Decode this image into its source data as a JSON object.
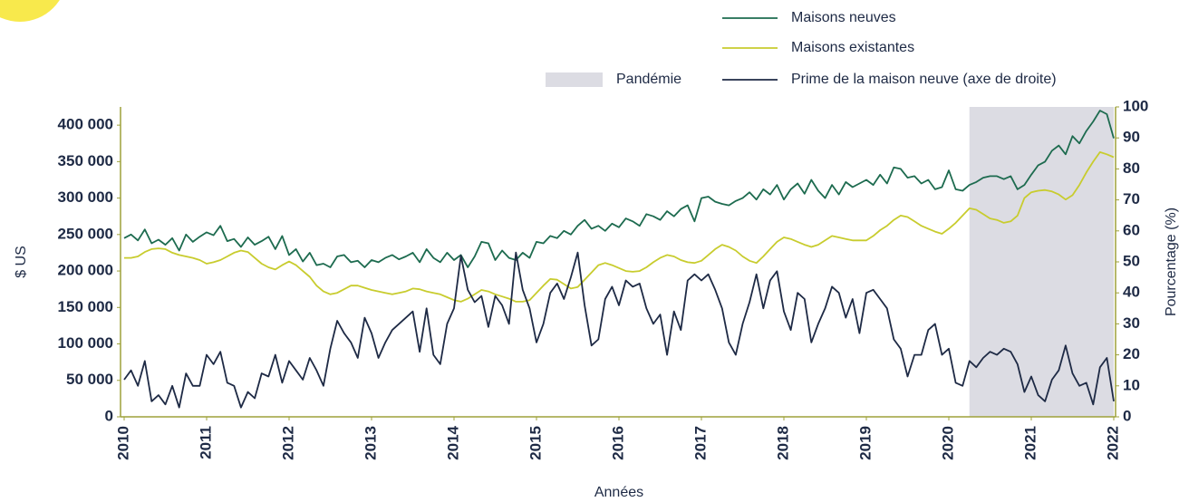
{
  "chart_data": {
    "type": "line",
    "x_label": "Années",
    "y_label": "$ US",
    "y2_label": "Pourcentage (%)",
    "x": [
      2010,
      2010.083,
      2010.167,
      2010.25,
      2010.333,
      2010.417,
      2010.5,
      2010.583,
      2010.667,
      2010.75,
      2010.833,
      2010.917,
      2011,
      2011.083,
      2011.167,
      2011.25,
      2011.333,
      2011.417,
      2011.5,
      2011.583,
      2011.667,
      2011.75,
      2011.833,
      2011.917,
      2012,
      2012.083,
      2012.167,
      2012.25,
      2012.333,
      2012.417,
      2012.5,
      2012.583,
      2012.667,
      2012.75,
      2012.833,
      2012.917,
      2013,
      2013.083,
      2013.167,
      2013.25,
      2013.333,
      2013.417,
      2013.5,
      2013.583,
      2013.667,
      2013.75,
      2013.833,
      2013.917,
      2014,
      2014.083,
      2014.167,
      2014.25,
      2014.333,
      2014.417,
      2014.5,
      2014.583,
      2014.667,
      2014.75,
      2014.833,
      2014.917,
      2015,
      2015.083,
      2015.167,
      2015.25,
      2015.333,
      2015.417,
      2015.5,
      2015.583,
      2015.667,
      2015.75,
      2015.833,
      2015.917,
      2016,
      2016.083,
      2016.167,
      2016.25,
      2016.333,
      2016.417,
      2016.5,
      2016.583,
      2016.667,
      2016.75,
      2016.833,
      2016.917,
      2017,
      2017.083,
      2017.167,
      2017.25,
      2017.333,
      2017.417,
      2017.5,
      2017.583,
      2017.667,
      2017.75,
      2017.833,
      2017.917,
      2018,
      2018.083,
      2018.167,
      2018.25,
      2018.333,
      2018.417,
      2018.5,
      2018.583,
      2018.667,
      2018.75,
      2018.833,
      2018.917,
      2019,
      2019.083,
      2019.167,
      2019.25,
      2019.333,
      2019.417,
      2019.5,
      2019.583,
      2019.667,
      2019.75,
      2019.833,
      2019.917,
      2020,
      2020.083,
      2020.167,
      2020.25,
      2020.333,
      2020.417,
      2020.5,
      2020.583,
      2020.667,
      2020.75,
      2020.833,
      2020.917,
      2021,
      2021.083,
      2021.167,
      2021.25,
      2021.333,
      2021.417,
      2021.5,
      2021.583,
      2021.667,
      2021.75,
      2021.833,
      2021.917,
      2022
    ],
    "xlim": [
      2010,
      2022
    ],
    "xticks": [
      2010,
      2011,
      2012,
      2013,
      2014,
      2015,
      2016,
      2017,
      2018,
      2019,
      2020,
      2021,
      2022
    ],
    "ylim": [
      0,
      425000
    ],
    "yticks": [
      0,
      {
        "value": 50000,
        "label": "50 000"
      },
      {
        "value": 100000,
        "label": "100 000"
      },
      {
        "value": 150000,
        "label": "150 000"
      },
      {
        "value": 200000,
        "label": "200 000"
      },
      {
        "value": 250000,
        "label": "250 000"
      },
      {
        "value": 300000,
        "label": "300 000"
      },
      {
        "value": 350000,
        "label": "350 000"
      },
      {
        "value": 400000,
        "label": "400 000"
      }
    ],
    "y2lim": [
      0,
      100
    ],
    "y2ticks": [
      0,
      10,
      20,
      30,
      40,
      50,
      60,
      70,
      80,
      90,
      100
    ],
    "axis_color": "#9ea13a",
    "pandemic": {
      "label": "Pandémie",
      "start": 2020.25,
      "end": 2022,
      "color": "#dcdce3"
    },
    "series": [
      {
        "name": "Maisons neuves",
        "color": "#1d6b4f",
        "values": [
          245000,
          250000,
          242000,
          257000,
          238000,
          243000,
          236000,
          245000,
          228000,
          250000,
          240000,
          247000,
          253000,
          249000,
          262000,
          241000,
          244000,
          233000,
          246000,
          236000,
          241000,
          247000,
          230000,
          248000,
          222000,
          230000,
          213000,
          225000,
          208000,
          210000,
          205000,
          220000,
          222000,
          212000,
          214000,
          205000,
          215000,
          212000,
          218000,
          222000,
          216000,
          220000,
          225000,
          212000,
          230000,
          218000,
          212000,
          225000,
          215000,
          222000,
          205000,
          220000,
          240000,
          238000,
          215000,
          228000,
          218000,
          215000,
          225000,
          218000,
          240000,
          238000,
          248000,
          245000,
          255000,
          250000,
          262000,
          270000,
          258000,
          262000,
          255000,
          265000,
          260000,
          272000,
          268000,
          262000,
          278000,
          275000,
          270000,
          282000,
          275000,
          285000,
          290000,
          268000,
          300000,
          302000,
          295000,
          292000,
          290000,
          296000,
          300000,
          308000,
          298000,
          312000,
          305000,
          318000,
          298000,
          312000,
          320000,
          306000,
          325000,
          310000,
          300000,
          318000,
          305000,
          322000,
          315000,
          320000,
          325000,
          318000,
          332000,
          320000,
          342000,
          340000,
          328000,
          330000,
          320000,
          325000,
          312000,
          315000,
          338000,
          312000,
          310000,
          318000,
          322000,
          328000,
          330000,
          330000,
          326000,
          330000,
          312000,
          318000,
          332000,
          345000,
          350000,
          365000,
          372000,
          360000,
          385000,
          375000,
          392000,
          405000,
          420000,
          415000,
          382000
        ]
      },
      {
        "name": "Maisons existantes",
        "color": "#c8cc2e",
        "values": [
          218000,
          218000,
          220000,
          226000,
          230000,
          231000,
          230000,
          225000,
          222000,
          220000,
          218000,
          215000,
          210000,
          212000,
          215000,
          220000,
          225000,
          228000,
          226000,
          218000,
          210000,
          205000,
          202000,
          208000,
          213000,
          208000,
          200000,
          192000,
          180000,
          172000,
          168000,
          170000,
          175000,
          180000,
          180000,
          177000,
          174000,
          172000,
          170000,
          168000,
          170000,
          172000,
          176000,
          175000,
          172000,
          170000,
          168000,
          164000,
          160000,
          158000,
          162000,
          168000,
          174000,
          172000,
          168000,
          165000,
          162000,
          158000,
          158000,
          160000,
          170000,
          180000,
          189000,
          188000,
          182000,
          176000,
          178000,
          188000,
          198000,
          208000,
          211000,
          208000,
          204000,
          200000,
          199000,
          200000,
          205000,
          212000,
          218000,
          222000,
          220000,
          215000,
          212000,
          211000,
          214000,
          222000,
          230000,
          236000,
          233000,
          228000,
          220000,
          214000,
          211000,
          220000,
          230000,
          240000,
          246000,
          244000,
          240000,
          236000,
          233000,
          236000,
          242000,
          248000,
          246000,
          244000,
          242000,
          242000,
          242000,
          248000,
          256000,
          262000,
          270000,
          276000,
          274000,
          268000,
          262000,
          258000,
          254000,
          251000,
          258000,
          266000,
          276000,
          286000,
          284000,
          278000,
          272000,
          270000,
          266000,
          268000,
          276000,
          300000,
          308000,
          310000,
          311000,
          309000,
          305000,
          298000,
          304000,
          318000,
          335000,
          350000,
          363000,
          360000,
          356000
        ]
      },
      {
        "name": "Prime de la maison neuve (axe de droite)",
        "color": "#1e2a45",
        "axis": "y2",
        "values": [
          12,
          15,
          10,
          18,
          5,
          7,
          4,
          10,
          3,
          14,
          10,
          10,
          20,
          17,
          21,
          11,
          10,
          3,
          8,
          6,
          14,
          13,
          20,
          11,
          18,
          15,
          12,
          19,
          15,
          10,
          22,
          31,
          27,
          24,
          19,
          32,
          27,
          19,
          24,
          28,
          30,
          32,
          34,
          21,
          35,
          20,
          17,
          30,
          35,
          52,
          41,
          37,
          39,
          29,
          39,
          36,
          30,
          53,
          41,
          35,
          24,
          30,
          40,
          43,
          38,
          45,
          53,
          36,
          23,
          25,
          38,
          42,
          36,
          44,
          42,
          43,
          35,
          30,
          33,
          20,
          34,
          28,
          44,
          46,
          44,
          46,
          41,
          35,
          24,
          20,
          30,
          37,
          46,
          35,
          44,
          47,
          34,
          28,
          40,
          38,
          24,
          30,
          35,
          42,
          40,
          32,
          38,
          27,
          40,
          41,
          38,
          35,
          25,
          22,
          13,
          20,
          20,
          28,
          30,
          20,
          22,
          11,
          10,
          18,
          16,
          19,
          21,
          20,
          22,
          21,
          17,
          8,
          13,
          7,
          5,
          12,
          15,
          23,
          14,
          10,
          11,
          4,
          16,
          19,
          5
        ]
      }
    ]
  }
}
